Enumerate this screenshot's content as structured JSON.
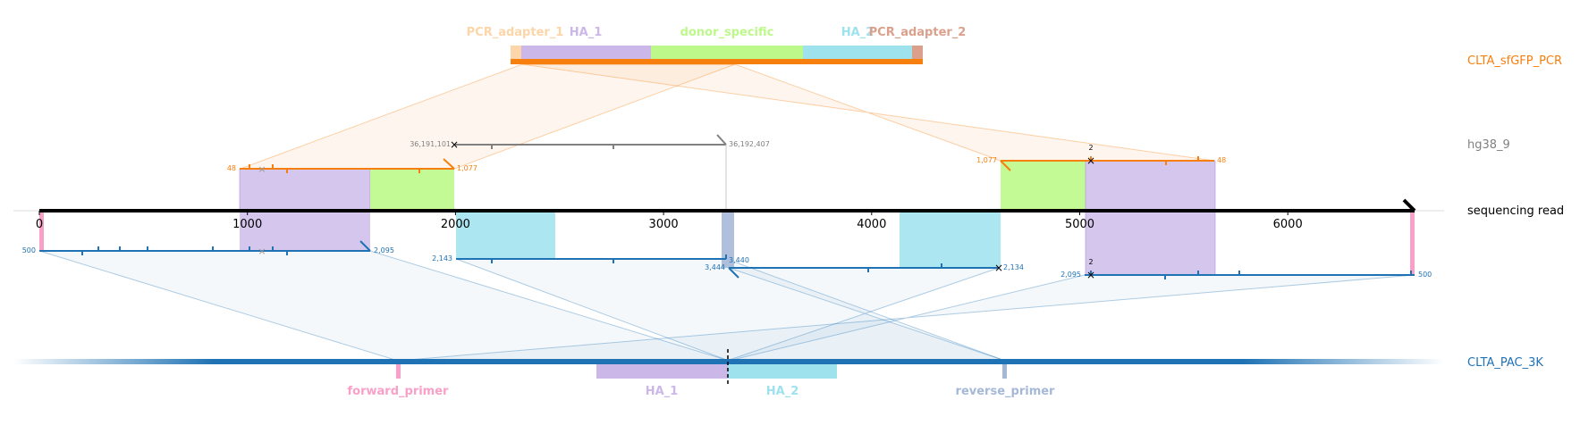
{
  "tracks": {
    "pcr": "CLTA_sfGFP_PCR",
    "genome": "hg38_9",
    "read": "sequencing read",
    "pac": "CLTA_PAC_3K"
  },
  "colors": {
    "pcr": "#f77f0e",
    "genome": "#808080",
    "read": "#000000",
    "pac": "#1f72b4",
    "pcr_adapter": "#fcd6a8",
    "ha1": "#cbb8e8",
    "ha2": "#9ee2ee",
    "donor_specific": "#bdf98a",
    "pcr_adapter_2": "#dba08c",
    "forward_primer": "#f8a0c8",
    "reverse_primer": "#a6b8d8"
  },
  "pcr_features": {
    "pcr_adapter_1": "PCR_adapter_1",
    "ha1": "HA_1",
    "donor_specific": "donor_specific",
    "ha2": "HA_2",
    "pcr_adapter_2": "PCR_adapter_2"
  },
  "pac_features": {
    "forward_primer": "forward_primer",
    "ha1": "HA_1",
    "ha2": "HA_2",
    "reverse_primer": "reverse_primer"
  },
  "read_axis": {
    "ticks": [
      "0",
      "1000",
      "2000",
      "3000",
      "4000",
      "5000",
      "6000"
    ]
  },
  "alignments": {
    "pcr_left": {
      "start": "48",
      "end": "1,077"
    },
    "pcr_right": {
      "start": "1,077",
      "end": "48",
      "count": "2"
    },
    "genome": {
      "start": "36,191,101",
      "end": "36,192,407"
    },
    "pac_1": {
      "start": "500",
      "end": "2,095"
    },
    "pac_2": {
      "start": "2,143",
      "end": "3,440"
    },
    "pac_3": {
      "start": "3,444",
      "end": "2,134"
    },
    "pac_4": {
      "start": "2,095",
      "end": "500",
      "count": "2"
    }
  }
}
